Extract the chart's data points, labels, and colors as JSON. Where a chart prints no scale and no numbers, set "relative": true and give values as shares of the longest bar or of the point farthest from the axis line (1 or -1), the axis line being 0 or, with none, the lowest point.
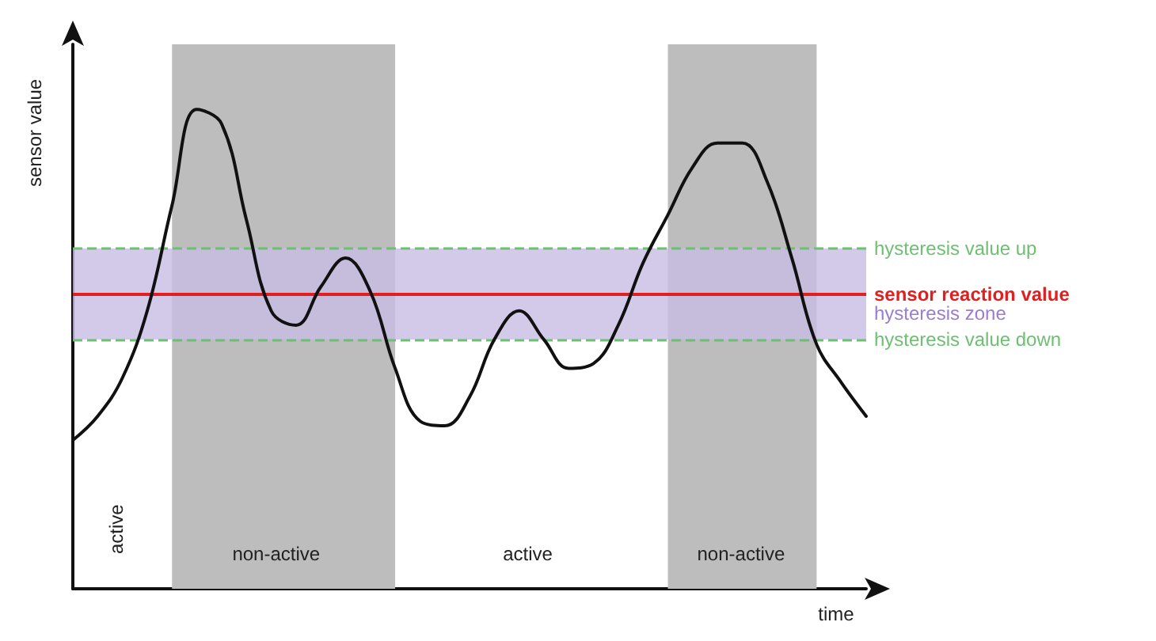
{
  "chart_data": {
    "type": "line",
    "relative": true,
    "xlabel": "time",
    "ylabel": "sensor value",
    "grid": false,
    "marker": "none",
    "categories": [
      null,
      null,
      null,
      null,
      null,
      null,
      null,
      null,
      null,
      null,
      null,
      null,
      null,
      null,
      null,
      null,
      null,
      null,
      null,
      null,
      null,
      null,
      null,
      null,
      null,
      null,
      null,
      null,
      null,
      null,
      null,
      null,
      null
    ],
    "series": [
      {
        "color": "#111111",
        "values": [
          0.31,
          0.36,
          0.44,
          0.58,
          0.8,
          1,
          0.97,
          0.77,
          0.58,
          0.55,
          0.63,
          0.69,
          0.62,
          0.46,
          0.35,
          0.34,
          0.4,
          0.52,
          0.58,
          0.52,
          0.46,
          0.47,
          0.55,
          0.68,
          0.78,
          0.88,
          0.93,
          0.93,
          0.85,
          0.69,
          0.51,
          0.43,
          0.36
        ]
      }
    ],
    "annotations": [
      "active",
      "non-active",
      "active",
      "non-active"
    ],
    "bands": [
      {
        "axis": "y",
        "from": 0.52,
        "to": 0.71,
        "label": "hysteresis zone",
        "color": "#c8bde3"
      }
    ],
    "ref_lines": [
      {
        "axis": "y",
        "value": 0.71,
        "label": "hysteresis value up",
        "color": "#6fbf73",
        "line_style": "dashed"
      },
      {
        "axis": "y",
        "value": 0.615,
        "label": "sensor reaction value",
        "color": "#e02020",
        "line_style": "solid"
      },
      {
        "axis": "y",
        "value": 0.52,
        "label": "hysteresis value down",
        "color": "#6fbf73",
        "line_style": "dashed"
      }
    ]
  }
}
